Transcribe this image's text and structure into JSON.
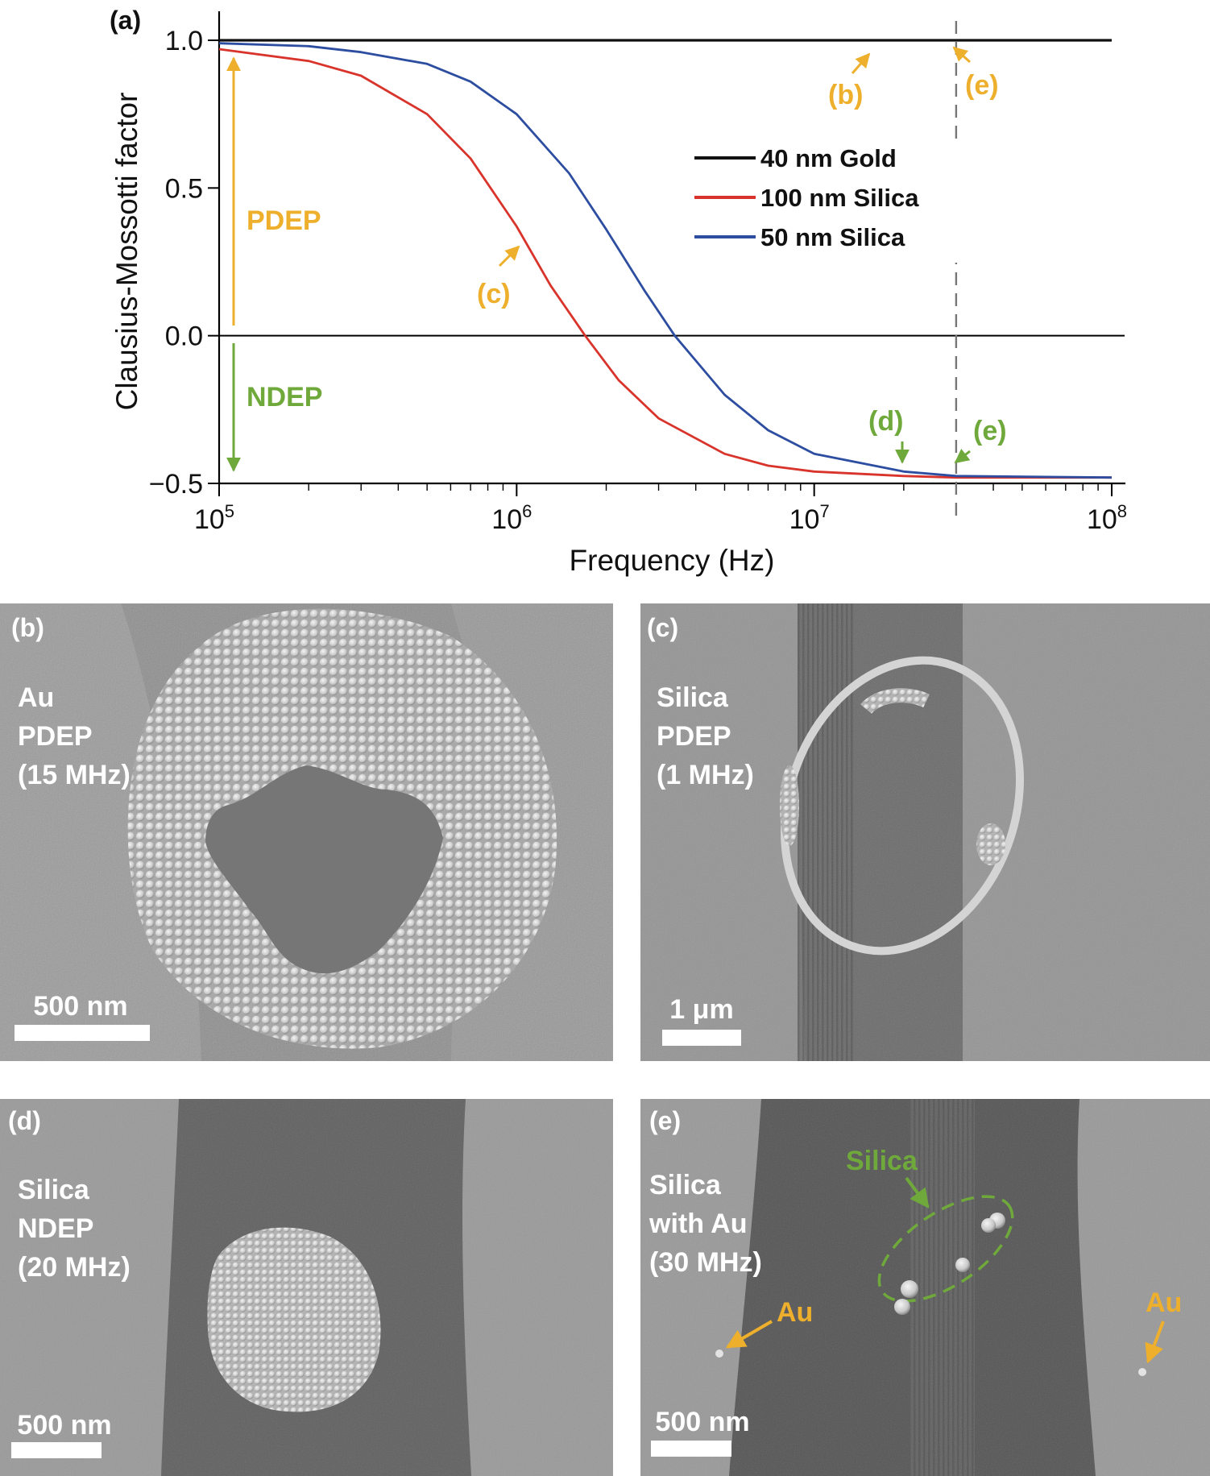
{
  "colors": {
    "gold_curve": "#111111",
    "silica100_curve": "#d9342b",
    "silica50_curve": "#2d4da0",
    "pdep": "#eeb02c",
    "ndep": "#6fa93b",
    "sem_background": "#8e8e8e"
  },
  "panel_a": {
    "label": "(a)",
    "pdep_label": "PDEP",
    "ndep_label": "NDEP",
    "markers": [
      {
        "id": "b",
        "text": "(b)",
        "color": "pdep"
      },
      {
        "id": "c",
        "text": "(c)",
        "color": "pdep"
      },
      {
        "id": "e_top",
        "text": "(e)",
        "color": "pdep"
      },
      {
        "id": "d",
        "text": "(d)",
        "color": "ndep"
      },
      {
        "id": "e_bottom",
        "text": "(e)",
        "color": "ndep"
      }
    ]
  },
  "chart_data": {
    "type": "line",
    "xlabel": "Frequency (Hz)",
    "ylabel": "Clausius-Mossotti factor",
    "xscale": "log",
    "xlim": [
      100000,
      100000000
    ],
    "ylim": [
      -0.5,
      1.0
    ],
    "x_ticks": [
      {
        "base": "10",
        "exp": "5"
      },
      {
        "base": "10",
        "exp": "6"
      },
      {
        "base": "10",
        "exp": "7"
      },
      {
        "base": "10",
        "exp": "8"
      }
    ],
    "y_ticks": [
      {
        "value": 1.0,
        "label": "1.0"
      },
      {
        "value": 0.5,
        "label": "0.5"
      },
      {
        "value": 0.0,
        "label": "0.0"
      },
      {
        "value": -0.5,
        "label": "−0.5"
      }
    ],
    "reference_line_x": 30000000,
    "legend_position": "center-right",
    "series": [
      {
        "name": "40 nm Gold",
        "color": "#111111",
        "x": [
          100000,
          1000000,
          10000000,
          100000000
        ],
        "y": [
          1.0,
          1.0,
          1.0,
          1.0
        ]
      },
      {
        "name": "100 nm Silica",
        "color": "#d9342b",
        "x": [
          100000,
          200000,
          300000,
          500000,
          700000,
          1000000,
          1300000,
          1700000,
          2200000,
          3000000,
          5000000,
          7000000,
          10000000,
          20000000,
          30000000,
          100000000
        ],
        "y": [
          0.97,
          0.93,
          0.88,
          0.75,
          0.6,
          0.37,
          0.17,
          0.0,
          -0.15,
          -0.28,
          -0.4,
          -0.44,
          -0.46,
          -0.475,
          -0.48,
          -0.48
        ]
      },
      {
        "name": "50 nm Silica",
        "color": "#2d4da0",
        "x": [
          100000,
          200000,
          300000,
          500000,
          700000,
          1000000,
          1500000,
          2000000,
          2700000,
          3400000,
          5000000,
          7000000,
          10000000,
          20000000,
          30000000,
          100000000
        ],
        "y": [
          0.99,
          0.98,
          0.96,
          0.92,
          0.86,
          0.75,
          0.55,
          0.36,
          0.15,
          0.0,
          -0.2,
          -0.32,
          -0.4,
          -0.46,
          -0.475,
          -0.48
        ]
      }
    ]
  },
  "sem_panels": [
    {
      "id": "b",
      "letter": "(b)",
      "lines": [
        "Au",
        "PDEP",
        "(15 MHz)"
      ],
      "scale": "500 nm"
    },
    {
      "id": "c",
      "letter": "(c)",
      "lines": [
        "Silica",
        "PDEP",
        "(1 MHz)"
      ],
      "scale": "1 μm"
    },
    {
      "id": "d",
      "letter": "(d)",
      "lines": [
        "Silica",
        "NDEP",
        "(20 MHz)"
      ],
      "scale": "500 nm"
    },
    {
      "id": "e",
      "letter": "(e)",
      "lines": [
        "Silica",
        "with Au",
        "(30 MHz)"
      ],
      "scale": "500 nm",
      "callouts": {
        "silica": "Silica",
        "au_left": "Au",
        "au_right": "Au"
      }
    }
  ]
}
